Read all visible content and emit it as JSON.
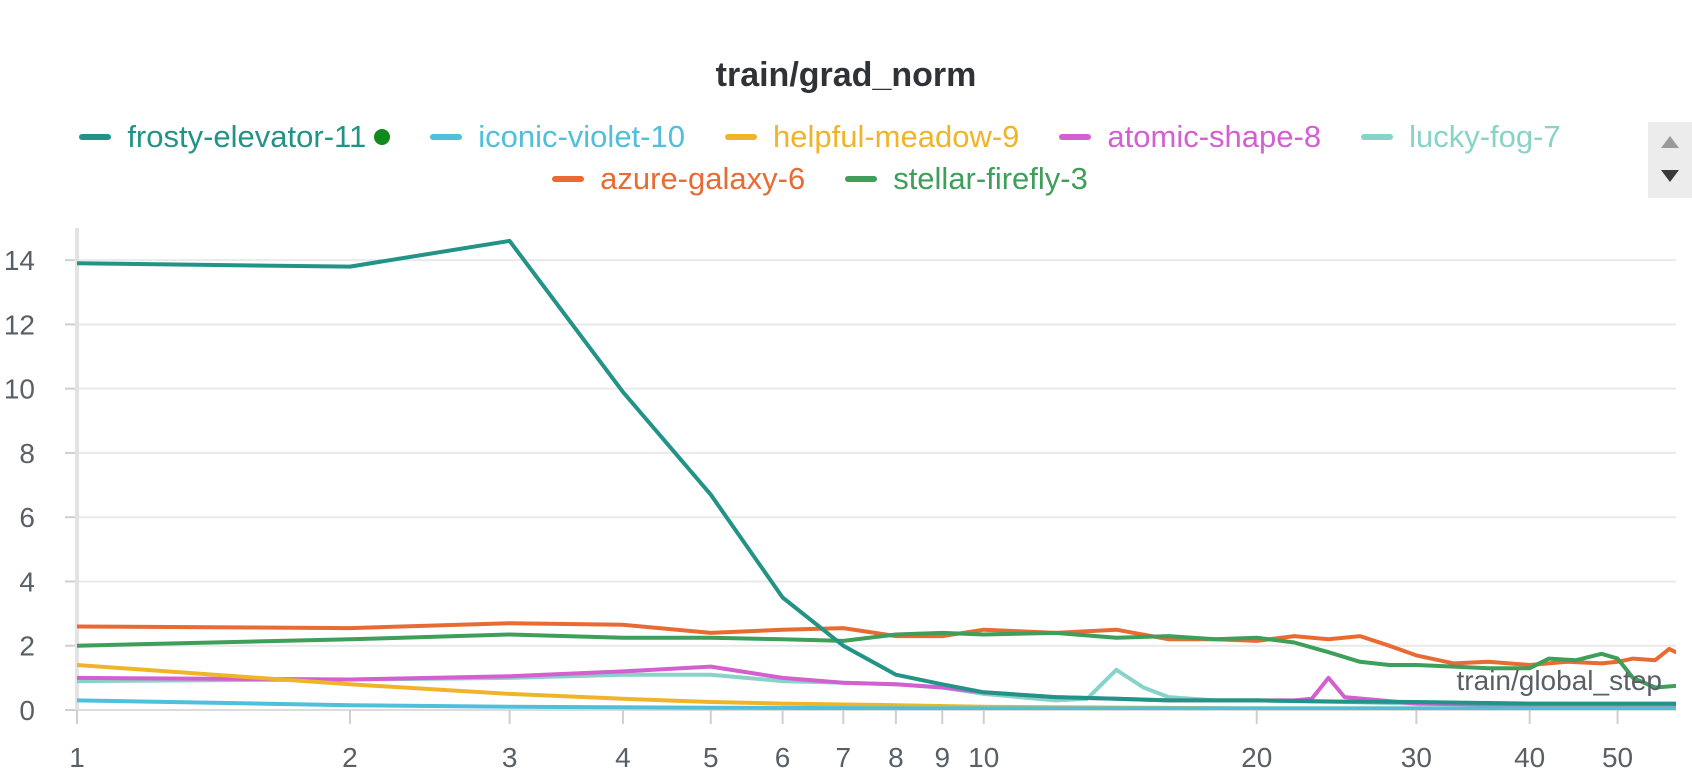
{
  "chart_data": {
    "type": "line",
    "title": "train/grad_norm",
    "xlabel": "train/global_step",
    "ylabel": "",
    "xscale": "log",
    "xlim": [
      1,
      58
    ],
    "ylim": [
      0,
      15
    ],
    "grid": true,
    "legend_placement": "top",
    "x_ticks": [
      1,
      2,
      3,
      4,
      5,
      6,
      7,
      8,
      9,
      10,
      20,
      30,
      40,
      50
    ],
    "y_ticks": [
      0,
      2,
      4,
      6,
      8,
      10,
      12,
      14
    ],
    "series": [
      {
        "name": "frosty-elevator-11",
        "color": "#229487",
        "live": true,
        "x": [
          1,
          2,
          3,
          4,
          5,
          6,
          7,
          8,
          9,
          10,
          12,
          14,
          16,
          18,
          20,
          22,
          25,
          30,
          35,
          40,
          45,
          50,
          58
        ],
        "y": [
          13.9,
          13.8,
          14.6,
          9.9,
          6.7,
          3.5,
          2.0,
          1.1,
          0.8,
          0.55,
          0.4,
          0.35,
          0.3,
          0.3,
          0.3,
          0.28,
          0.26,
          0.25,
          0.22,
          0.2,
          0.2,
          0.2,
          0.2
        ]
      },
      {
        "name": "iconic-violet-10",
        "color": "#4fbfdb",
        "x": [
          1,
          2,
          3,
          5,
          10,
          20,
          58
        ],
        "y": [
          0.3,
          0.15,
          0.1,
          0.07,
          0.05,
          0.05,
          0.05
        ]
      },
      {
        "name": "helpful-meadow-9",
        "color": "#f0b429",
        "x": [
          1,
          2,
          3,
          4,
          5,
          6,
          8,
          10,
          20,
          58
        ],
        "y": [
          1.4,
          0.8,
          0.5,
          0.35,
          0.25,
          0.2,
          0.15,
          0.1,
          0.05,
          0.05
        ]
      },
      {
        "name": "atomic-shape-8",
        "color": "#d45fd1",
        "x": [
          1,
          2,
          3,
          4,
          5,
          6,
          7,
          8,
          9,
          10,
          12,
          14,
          16,
          18,
          20,
          22,
          23,
          24,
          25,
          30,
          40,
          58
        ],
        "y": [
          1.0,
          0.95,
          1.05,
          1.2,
          1.35,
          1.0,
          0.85,
          0.8,
          0.7,
          0.55,
          0.4,
          0.35,
          0.3,
          0.3,
          0.3,
          0.3,
          0.35,
          1.0,
          0.4,
          0.2,
          0.15,
          0.1
        ]
      },
      {
        "name": "lucky-fog-7",
        "color": "#86d3c7",
        "x": [
          1,
          2,
          3,
          4,
          5,
          6,
          7,
          8,
          9,
          10,
          12,
          13,
          14,
          15,
          16,
          18,
          20,
          25,
          30,
          40,
          58
        ],
        "y": [
          0.9,
          0.95,
          1.0,
          1.1,
          1.1,
          0.9,
          0.85,
          0.8,
          0.7,
          0.5,
          0.3,
          0.35,
          1.25,
          0.7,
          0.4,
          0.3,
          0.3,
          0.25,
          0.2,
          0.2,
          0.15
        ]
      },
      {
        "name": "azure-galaxy-6",
        "color": "#e86b33",
        "x": [
          1,
          2,
          3,
          4,
          5,
          6,
          7,
          8,
          9,
          10,
          12,
          14,
          16,
          18,
          20,
          22,
          24,
          26,
          28,
          30,
          33,
          36,
          40,
          44,
          48,
          50,
          52,
          55,
          57,
          58
        ],
        "y": [
          2.6,
          2.55,
          2.7,
          2.65,
          2.4,
          2.5,
          2.55,
          2.3,
          2.3,
          2.5,
          2.4,
          2.5,
          2.2,
          2.2,
          2.15,
          2.3,
          2.2,
          2.3,
          2.0,
          1.7,
          1.45,
          1.5,
          1.4,
          1.5,
          1.45,
          1.5,
          1.6,
          1.55,
          1.9,
          1.8
        ]
      },
      {
        "name": "stellar-firefly-3",
        "color": "#3f9e5a",
        "x": [
          1,
          2,
          3,
          4,
          5,
          6,
          7,
          8,
          9,
          10,
          12,
          14,
          16,
          18,
          20,
          22,
          24,
          26,
          28,
          30,
          33,
          36,
          40,
          42,
          45,
          48,
          50,
          52,
          55,
          58
        ],
        "y": [
          2.0,
          2.2,
          2.35,
          2.25,
          2.25,
          2.2,
          2.15,
          2.35,
          2.4,
          2.35,
          2.4,
          2.25,
          2.3,
          2.2,
          2.25,
          2.1,
          1.8,
          1.5,
          1.4,
          1.4,
          1.35,
          1.3,
          1.3,
          1.6,
          1.55,
          1.75,
          1.6,
          1.0,
          0.7,
          0.75
        ]
      }
    ]
  }
}
